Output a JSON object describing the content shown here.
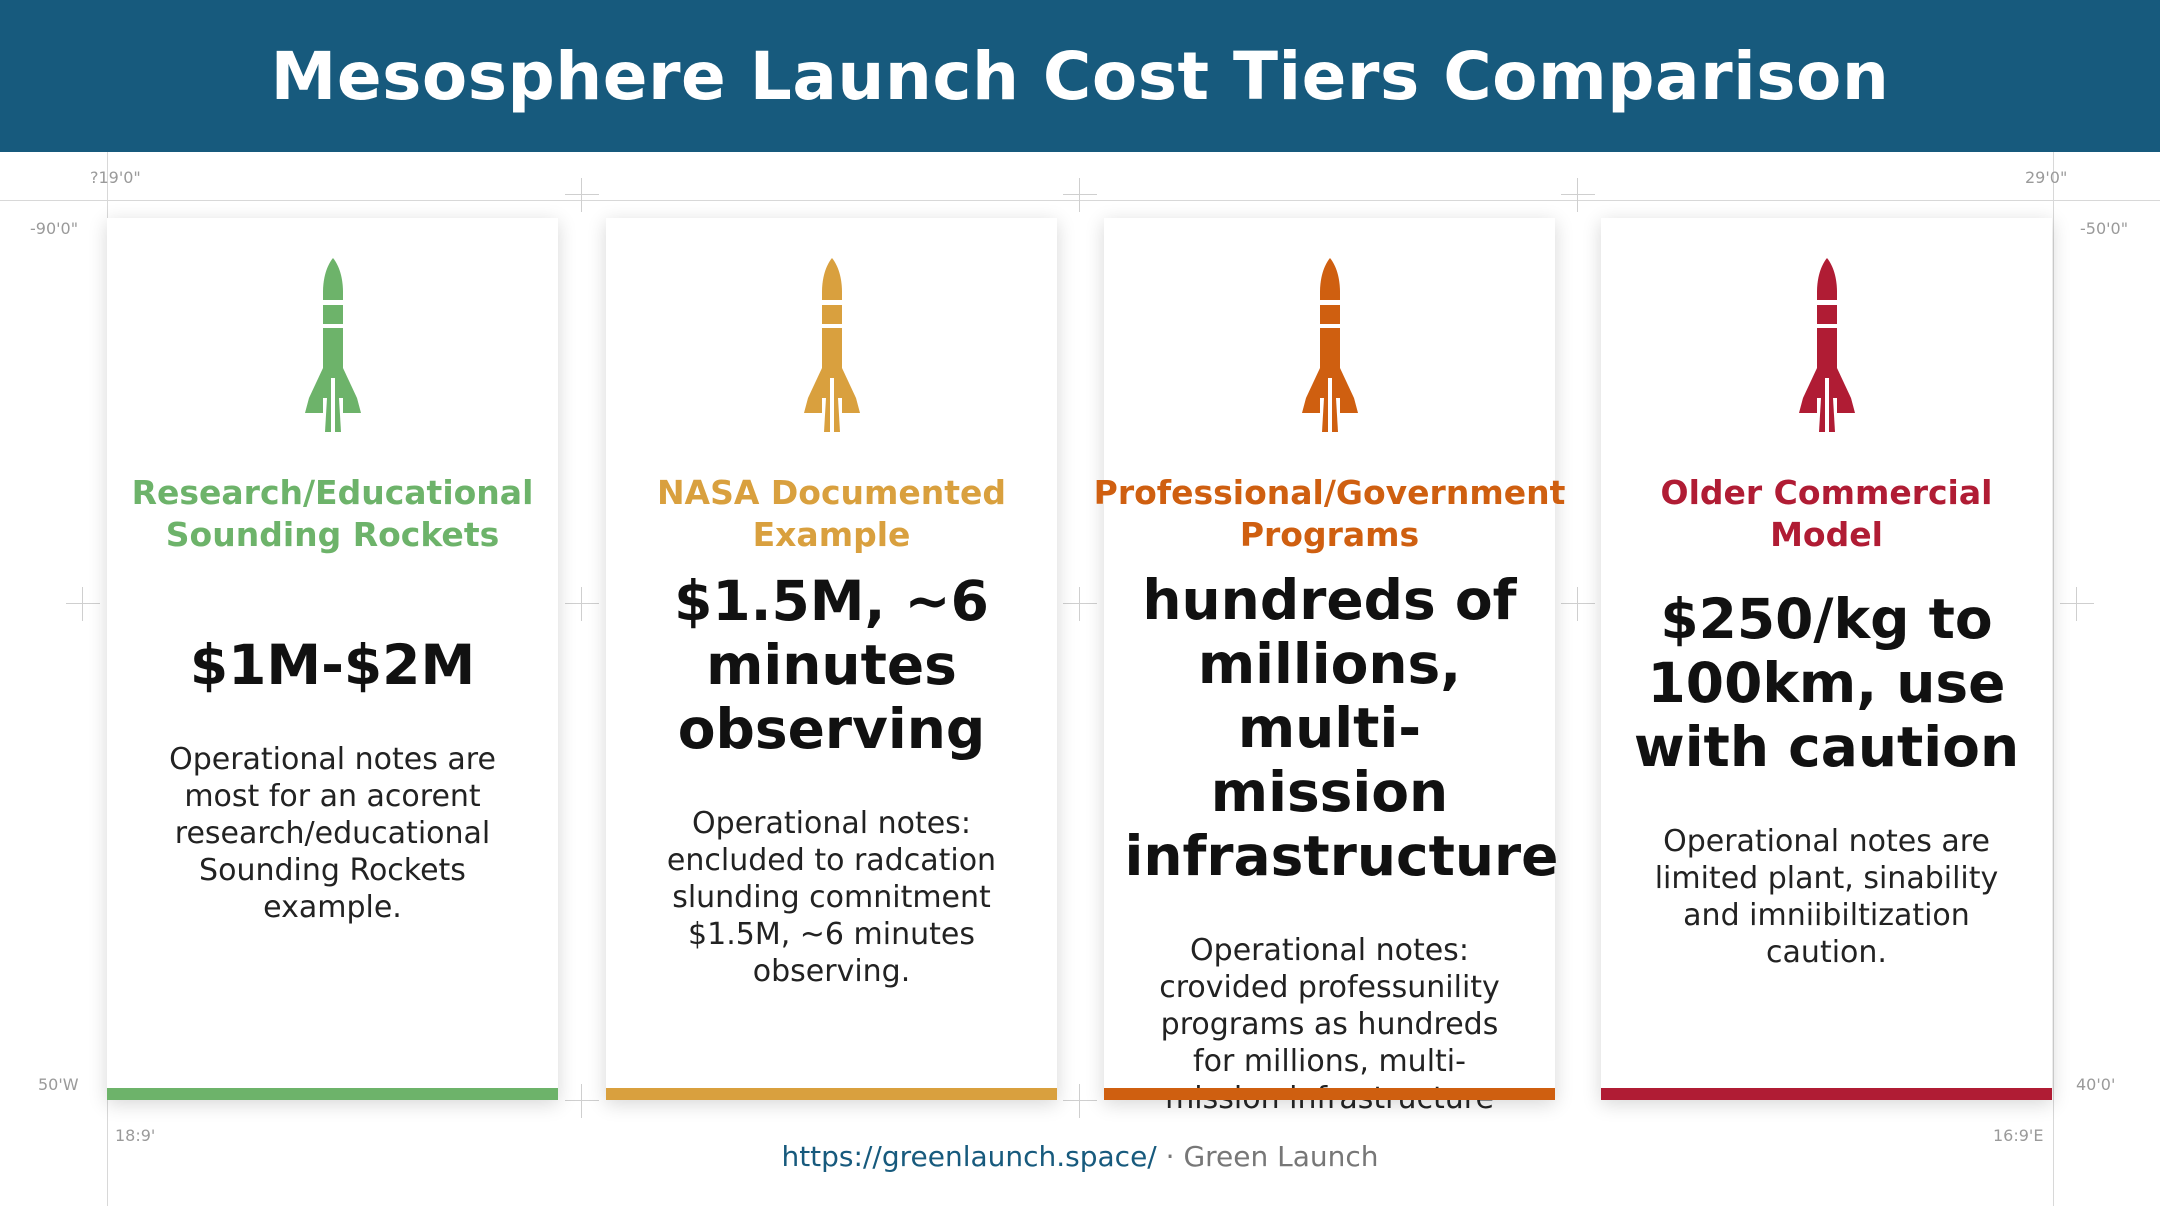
{
  "header": {
    "title": "Mesosphere Launch Cost Tiers Comparison"
  },
  "cards": [
    {
      "label": "Research/Educational Sounding Rockets",
      "price": "$1M-$2M",
      "notes": "Operational notes are most for an acorent research/educational Sounding Rockets example."
    },
    {
      "label": "NASA Documented Example",
      "price": "$1.5M, ~6 minutes observing",
      "notes": "Operational notes: encluded to radcation slunding comnitment $1.5M, ~6 minutes observing."
    },
    {
      "label": "Professional/Government Programs",
      "price": "hundreds of millions, multi-mission infrastructure",
      "notes": "Operational notes: crovided professunility programs as hundreds for millions, multi-mission infrastructure"
    },
    {
      "label": "Older Commercial Model",
      "price": "$250/kg to 100km, use with caution",
      "notes": "Operational notes are limited plant, sinability and imniibiltization caution."
    }
  ],
  "markers": [
    "?19'0\"",
    "29'0\"",
    "-90'0\"",
    "-50'0\"",
    "50'W",
    "40'0'",
    "18:9'",
    "16:9'E"
  ],
  "footer": {
    "url": "https://greenlaunch.space/",
    "brand": "· Green Launch"
  }
}
